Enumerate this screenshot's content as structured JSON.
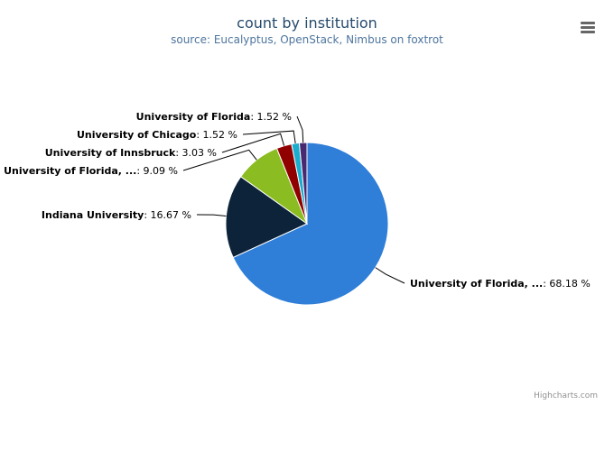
{
  "chart_data": {
    "type": "pie",
    "title": "count by institution",
    "subtitle": "source: Eucalyptus, OpenStack, Nimbus on foxtrot",
    "slices": [
      {
        "label": "University of Florida, ...",
        "value": 68.18,
        "value_label": "68.18 %",
        "color": "#2f7ed8"
      },
      {
        "label": "Indiana University",
        "value": 16.67,
        "value_label": "16.67 %",
        "color": "#0d233a"
      },
      {
        "label": "University of Florida, ...",
        "value": 9.09,
        "value_label": "9.09 %",
        "color": "#8bbc21"
      },
      {
        "label": "University of Innsbruck",
        "value": 3.03,
        "value_label": "3.03 %",
        "color": "#910000"
      },
      {
        "label": "University of Chicago",
        "value": 1.52,
        "value_label": "1.52 %",
        "color": "#1aadce"
      },
      {
        "label": "University of Florida",
        "value": 1.52,
        "value_label": "1.52 %",
        "color": "#492970"
      }
    ]
  },
  "credits": "Highcharts.com",
  "menu_icon": "hamburger-menu-icon"
}
